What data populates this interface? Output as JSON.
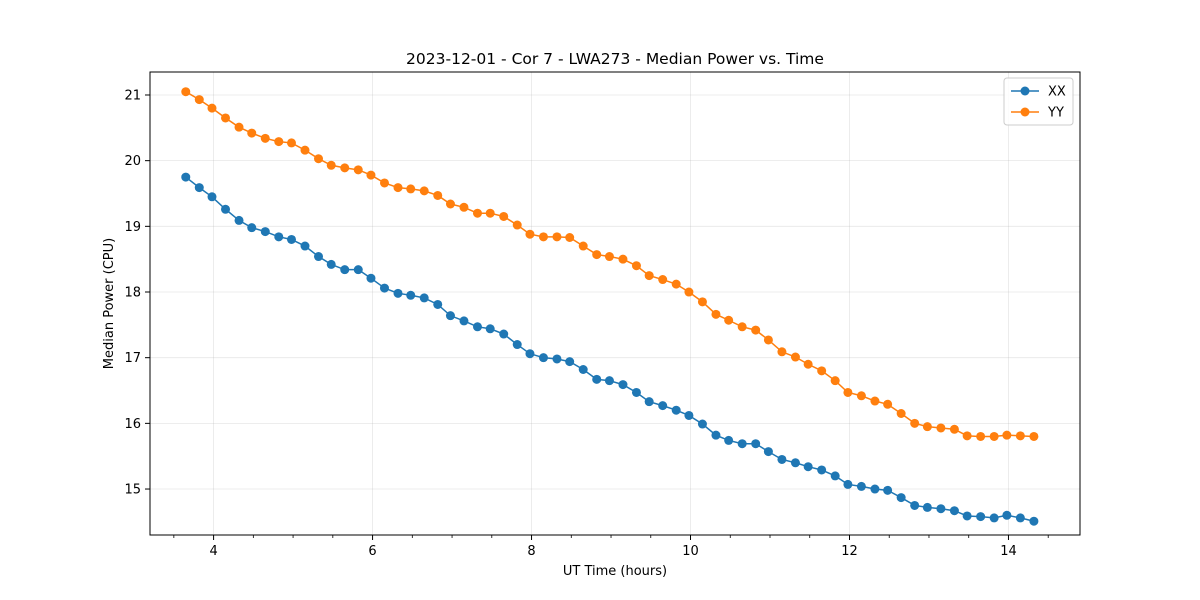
{
  "chart_data": {
    "type": "line",
    "title": "2023-12-01 - Cor 7 - LWA273 - Median Power vs. Time",
    "xlabel": "UT Time (hours)",
    "ylabel": "Median Power (CPU)",
    "xlim": [
      3.2,
      14.9
    ],
    "ylim": [
      14.3,
      21.35
    ],
    "xticks": [
      4,
      6,
      8,
      10,
      12,
      14
    ],
    "xtick_labels": [
      "4",
      "6",
      "8",
      "10",
      "12",
      "14"
    ],
    "yticks": [
      15,
      16,
      17,
      18,
      19,
      20,
      21
    ],
    "ytick_labels": [
      "15",
      "16",
      "17",
      "18",
      "19",
      "20",
      "21"
    ],
    "grid": true,
    "legend_position": "top-right",
    "x": [
      3.65,
      3.82,
      3.98,
      4.15,
      4.32,
      4.48,
      4.65,
      4.82,
      4.98,
      5.15,
      5.32,
      5.48,
      5.65,
      5.82,
      5.98,
      6.15,
      6.32,
      6.48,
      6.65,
      6.82,
      6.98,
      7.15,
      7.32,
      7.48,
      7.65,
      7.82,
      7.98,
      8.15,
      8.32,
      8.48,
      8.65,
      8.82,
      8.98,
      9.15,
      9.32,
      9.48,
      9.65,
      9.82,
      9.98,
      10.15,
      10.32,
      10.48,
      10.65,
      10.82,
      10.98,
      11.15,
      11.32,
      11.48,
      11.65,
      11.82,
      11.98,
      12.15,
      12.32,
      12.48,
      12.65,
      12.82,
      12.98,
      13.15,
      13.32,
      13.48,
      13.65,
      13.82,
      13.98,
      14.15,
      14.32
    ],
    "series": [
      {
        "name": "XX",
        "color": "#1f77b4",
        "values": [
          19.75,
          19.59,
          19.45,
          19.26,
          19.09,
          18.98,
          18.92,
          18.84,
          18.8,
          18.7,
          18.54,
          18.42,
          18.34,
          18.34,
          18.21,
          18.06,
          17.98,
          17.95,
          17.91,
          17.81,
          17.64,
          17.56,
          17.47,
          17.44,
          17.36,
          17.2,
          17.06,
          17.0,
          16.98,
          16.94,
          16.82,
          16.67,
          16.65,
          16.59,
          16.47,
          16.33,
          16.27,
          16.2,
          16.12,
          15.99,
          15.82,
          15.74,
          15.69,
          15.69,
          15.57,
          15.45,
          15.4,
          15.34,
          15.29,
          15.2,
          15.07,
          15.04,
          15.0,
          14.98,
          14.87,
          14.75,
          14.72,
          14.7,
          14.67,
          14.59,
          14.58,
          14.56,
          14.6,
          14.56,
          14.51
        ]
      },
      {
        "name": "YY",
        "color": "#ff7f0e",
        "values": [
          21.05,
          20.93,
          20.8,
          20.65,
          20.51,
          20.42,
          20.34,
          20.29,
          20.27,
          20.16,
          20.03,
          19.93,
          19.89,
          19.86,
          19.78,
          19.66,
          19.59,
          19.57,
          19.54,
          19.47,
          19.34,
          19.29,
          19.2,
          19.2,
          19.15,
          19.02,
          18.88,
          18.84,
          18.84,
          18.83,
          18.7,
          18.57,
          18.54,
          18.5,
          18.4,
          18.25,
          18.19,
          18.12,
          18.0,
          17.85,
          17.66,
          17.57,
          17.47,
          17.42,
          17.27,
          17.09,
          17.01,
          16.9,
          16.8,
          16.65,
          16.47,
          16.42,
          16.34,
          16.29,
          16.15,
          16.0,
          15.95,
          15.93,
          15.91,
          15.81,
          15.8,
          15.8,
          15.82,
          15.81,
          15.8
        ]
      }
    ]
  }
}
